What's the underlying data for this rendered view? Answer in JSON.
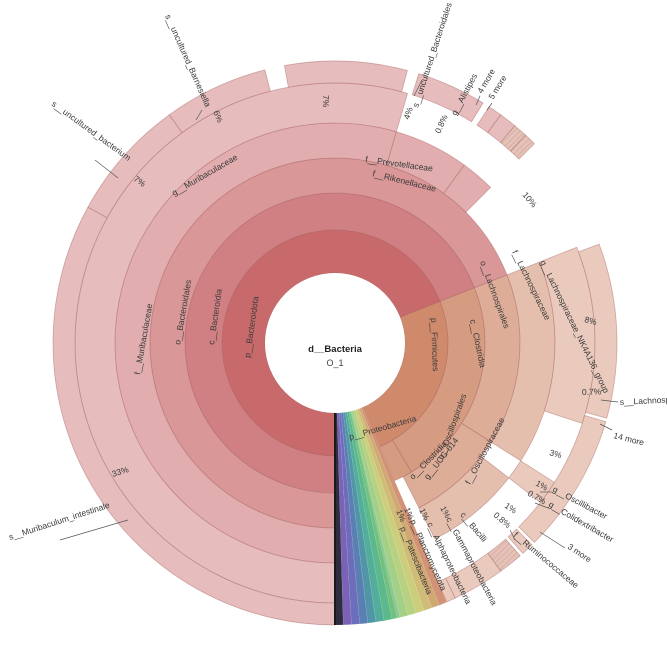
{
  "chart_data": {
    "type": "sunburst",
    "root": {
      "name": "d__Bacteria",
      "sample": "O_1"
    },
    "colors": {
      "bacteroidota": "#c86a6c",
      "firmicutes": "#cf8a6c",
      "hatch": "#e7c7bd",
      "spectrum": [
        "#c87a5a",
        "#c69654",
        "#c5ae5a",
        "#c2c460",
        "#a9c765",
        "#8fc56c",
        "#72c07c",
        "#5cb98c",
        "#52ad9a",
        "#5096a6",
        "#5a7fb3",
        "#6c6dbb",
        "#7b62b6",
        "#2e2e40"
      ]
    },
    "rings": [
      {
        "level": 1,
        "label": "p__Bacteroidota",
        "start": 0.0,
        "end": 0.69
      },
      {
        "level": 2,
        "label": "c__Bacteroidia",
        "start": 0.0,
        "end": 0.69
      },
      {
        "level": 3,
        "label": "o__Bacteroidales",
        "start": 0.0,
        "end": 0.69
      },
      {
        "level": 4,
        "label": "f__Muribaculaceae",
        "start": 0.0,
        "end": 0.545
      },
      {
        "level": 5,
        "label": "g__Muribaculaceae",
        "start": 0.0,
        "end": 0.545
      },
      {
        "level": 6,
        "label": "s__Muribaculum_intestinale 33%",
        "value": 33,
        "start": 0.0,
        "end": 0.33
      },
      {
        "level": 6,
        "label": "s__uncultured_bacterium 7%",
        "value": 7,
        "start": 0.33,
        "end": 0.4
      },
      {
        "level": 6,
        "label": "s__uncultured_Barnesiella 6%",
        "value": 6,
        "start": 0.4,
        "end": 0.46
      },
      {
        "level": 6,
        "label": "7%",
        "value": 7,
        "start": 0.4713,
        "end": 0.5413
      },
      {
        "level": 4,
        "label": "f__Prevotellaceae",
        "start": 0.545,
        "end": 0.6
      },
      {
        "level": 6,
        "label": "s__uncultured_Bacteroidales 4%",
        "value": 4,
        "start": 0.548,
        "end": 0.588
      },
      {
        "level": 4,
        "label": "f__Rikenellaceae",
        "start": 0.6,
        "end": 0.625
      },
      {
        "level": 6,
        "label": "0.8%",
        "value": 0.8,
        "start": 0.592,
        "end": 0.6
      },
      {
        "level": 6,
        "label": "g__Alistipes",
        "start": 0.6,
        "end": 0.61
      },
      {
        "level": 6,
        "label": "4 more",
        "start": 0.61,
        "end": 0.618
      },
      {
        "level": 6,
        "label": "5 more",
        "start": 0.618,
        "end": 0.625
      },
      {
        "level": 1,
        "label": "p__Firmicutes",
        "start": 0.69,
        "end": 0.935
      },
      {
        "level": 2,
        "label": "c__Clostridia",
        "start": 0.69,
        "end": 0.915
      },
      {
        "level": 3,
        "label": "o__Lachnospirales",
        "start": 0.69,
        "end": 0.84
      },
      {
        "level": 4,
        "label": "f__Lachnospiraceae",
        "start": 0.69,
        "end": 0.84
      },
      {
        "level": 5,
        "label": "g__Lachnospiraceae_NK4A136_group",
        "start": 0.69,
        "end": 0.8
      },
      {
        "level": 6,
        "label": "10%",
        "value": 10,
        "start": 0.693,
        "end": 0.793
      },
      {
        "level": 6,
        "label": "8%",
        "value": 8,
        "start": 0.795,
        "end": 0.875
      },
      {
        "level": 6,
        "label": "0.7% s__Lachnospira",
        "value": 0.7,
        "start": 0.877,
        "end": 0.884
      },
      {
        "level": 6,
        "label": "14 more",
        "start": 0.886,
        "end": 0.9
      },
      {
        "level": 3,
        "label": "o__Oscillospirales",
        "start": 0.84,
        "end": 0.925
      },
      {
        "level": 4,
        "label": "f__Oscillospiraceae",
        "start": 0.855,
        "end": 0.925
      },
      {
        "level": 5,
        "label": "g__UCG-014",
        "start": 0.84,
        "end": 0.855
      },
      {
        "level": 6,
        "label": "3%",
        "value": 3,
        "start": 0.9,
        "end": 0.93
      },
      {
        "level": 6,
        "label": "1% g__Oscillibacter",
        "value": 1,
        "start": 0.93,
        "end": 0.94
      },
      {
        "level": 6,
        "label": "0.7% g__Colidextribacter",
        "value": 0.7,
        "start": 0.94,
        "end": 0.947
      },
      {
        "level": 6,
        "label": "1% 3 more",
        "value": 1,
        "start": 0.947,
        "end": 0.957
      },
      {
        "level": 6,
        "label": "0.8% f__Ruminococcaceae",
        "value": 0.8,
        "start": 0.957,
        "end": 0.965
      },
      {
        "level": 2,
        "label": "c__Bacilli",
        "start": 0.915,
        "end": 0.935
      },
      {
        "level": 1,
        "label": "p__Proteobacteria",
        "start": 0.935,
        "end": 0.985
      },
      {
        "level": 2,
        "label": "c__Gammaproteobacteria 1%",
        "value": 1,
        "start": 0.965,
        "end": 0.975
      },
      {
        "level": 2,
        "label": "c__Alphaproteobacteria 1%",
        "value": 1,
        "start": 0.975,
        "end": 0.985
      },
      {
        "level": 1,
        "label": "p__Planctomycetota 1%",
        "value": 1,
        "start": 0.985,
        "end": 0.995
      },
      {
        "level": 1,
        "label": "p__Patescibacteria 1%",
        "value": 1,
        "start": 0.995,
        "end": 1.0
      }
    ]
  },
  "labels": {
    "center_name": "d__Bacteria",
    "center_sample": "O_1",
    "s_muribaculum": "s__Muribaculum_intestinale",
    "pct_33": "33%",
    "s_uncult_bact": "s__uncultured_bacterium",
    "pct_7a": "7%",
    "s_uncult_barnes": "s__uncultured_Barnesiella",
    "pct_6": "6%",
    "pct_7b": "7%",
    "s_uncult_bacteroidales": "s__uncultured_Bacteroidales",
    "pct_4": "4%",
    "pct_08a": "0.8%",
    "g_alistipes": "g__Alistipes",
    "more_4": "4 more",
    "more_5": "5 more",
    "pct_10": "10%",
    "pct_8": "8%",
    "pct_07a": "0.7%",
    "s_lachnospira": "s__Lachnospira",
    "more_14": "14 more",
    "pct_3": "3%",
    "pct_1a": "1%",
    "g_oscillibacter": "g__Oscillibacter",
    "pct_07b": "0.7%",
    "g_colidextribacter": "g__Colidextribacter",
    "pct_1b": "1%",
    "more_3": "3 more",
    "pct_08b": "0.8%",
    "f_ruminococcaceae": "f__Ruminococcaceae",
    "c_gamma": "c__Gammaproteobacteria",
    "pct_1c": "1%",
    "c_alpha": "c__Alphaproteobacteria",
    "pct_1d": "1%",
    "p_plancto": "p__Planctomycetota",
    "pct_1e": "1%",
    "p_patesci": "p__Patescibacteria",
    "pct_1f": "1%",
    "c_bacilli": "c__Bacilli",
    "o_oscillospirales": "o__Oscillospirales",
    "f_oscillospiraceae": "f__Oscillospiraceae",
    "g_ucg014": "g__UCG-014",
    "o_clostridia": "o__Clostridia",
    "p_proteobacteria": "p__Proteobacteria",
    "p_bacteroidota": "p__Bacteroidota",
    "c_bacteroidia": "c__Bacteroidia",
    "o_bacteroidales": "o__Bacteroidales",
    "f_muribaculaceae": "f__Muribaculaceae",
    "g_muribaculaceae": "g__Muribaculaceae",
    "f_prevotellaceae": "f__Prevotellaceae",
    "f_rikenellaceae": "f__Rikenellaceae",
    "p_firmicutes": "p__Firmicutes",
    "c_clostridia": "c__Clostridia",
    "o_lachnospirales": "o__Lachnospirales",
    "f_lachnospiraceae": "f__Lachnospiraceae",
    "g_lachno_nk": "g__Lachnospiraceae_NK4A136_group"
  }
}
